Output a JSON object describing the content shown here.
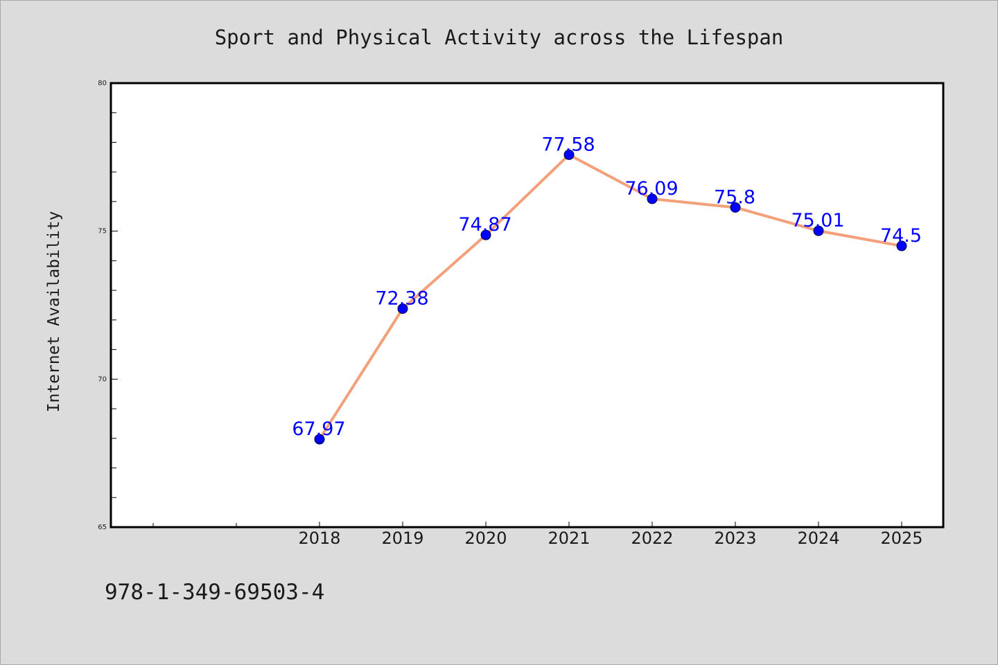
{
  "chart_data": {
    "type": "line",
    "title": "Sport and Physical Activity across the Lifespan",
    "xlabel": "",
    "ylabel": "Internet Availability",
    "categories": [
      "2018",
      "2019",
      "2020",
      "2021",
      "2022",
      "2023",
      "2024",
      "2025"
    ],
    "series": [
      {
        "values": [
          67.97,
          72.38,
          74.87,
          77.58,
          76.09,
          75.8,
          75.01,
          74.5
        ],
        "labels": [
          "67.97",
          "72.38",
          "74.87",
          "77.58",
          "76.09",
          "75.8",
          "75.01",
          "74.5"
        ],
        "line_color": "#f4a07a",
        "marker_color": "#0000ff"
      }
    ],
    "ylim": [
      65,
      80
    ],
    "yticks": [
      "65",
      "70",
      "75",
      "80"
    ],
    "grid": false,
    "legend": "none"
  },
  "footer": {
    "isbn": "978-1-349-69503-4"
  },
  "colors": {
    "background": "#dcdcdc",
    "plot_background": "#ffffff",
    "line": "#f4a07a",
    "marker": "#0000ff",
    "label": "#0000ff"
  }
}
